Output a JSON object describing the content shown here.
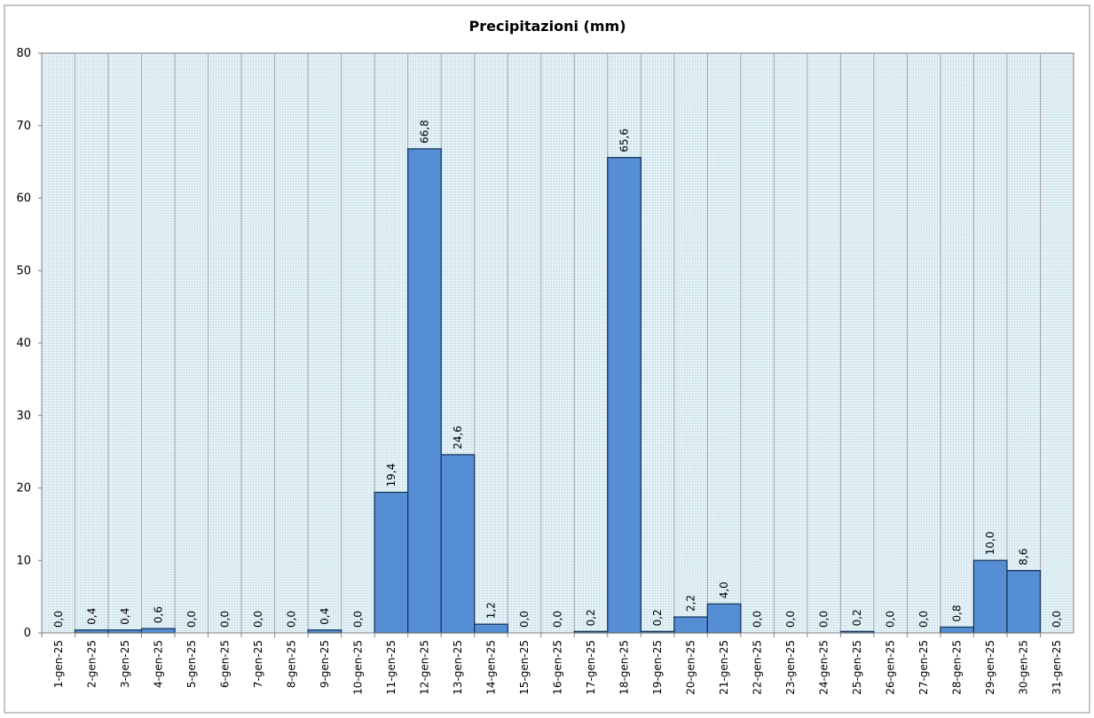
{
  "chart_data": {
    "type": "bar",
    "title": "Precipitazioni  (mm)",
    "xlabel": "",
    "ylabel": "",
    "ylim": [
      0,
      80
    ],
    "yticks": [
      "0",
      "10",
      "20",
      "30",
      "40",
      "50",
      "60",
      "70",
      "80"
    ],
    "grid": "vertical",
    "categories": [
      "1-gen-25",
      "2-gen-25",
      "3-gen-25",
      "4-gen-25",
      "5-gen-25",
      "6-gen-25",
      "7-gen-25",
      "8-gen-25",
      "9-gen-25",
      "10-gen-25",
      "11-gen-25",
      "12-gen-25",
      "13-gen-25",
      "14-gen-25",
      "15-gen-25",
      "16-gen-25",
      "17-gen-25",
      "18-gen-25",
      "19-gen-25",
      "20-gen-25",
      "21-gen-25",
      "22-gen-25",
      "23-gen-25",
      "24-gen-25",
      "25-gen-25",
      "26-gen-25",
      "27-gen-25",
      "28-gen-25",
      "29-gen-25",
      "30-gen-25",
      "31-gen-25"
    ],
    "values": [
      0.0,
      0.4,
      0.4,
      0.6,
      0.0,
      0.0,
      0.0,
      0.0,
      0.4,
      0.0,
      19.4,
      66.8,
      24.6,
      1.2,
      0.0,
      0.0,
      0.2,
      65.6,
      0.2,
      2.2,
      4.0,
      0.0,
      0.0,
      0.0,
      0.2,
      0.0,
      0.0,
      0.8,
      10.0,
      8.6,
      0.0
    ],
    "labels": [
      "0,0",
      "0,4",
      "0,4",
      "0,6",
      "0,0",
      "0,0",
      "0,0",
      "0,0",
      "0,4",
      "0,0",
      "19,4",
      "66,8",
      "24,6",
      "1,2",
      "0,0",
      "0,0",
      "0,2",
      "65,6",
      "0,2",
      "2,2",
      "4,0",
      "0,0",
      "0,0",
      "0,0",
      "0,2",
      "0,0",
      "0,0",
      "0,8",
      "10,0",
      "8,6",
      "0,0"
    ],
    "colors": {
      "bar": "#558ed5",
      "bar_border": "#17375e",
      "plot_bg": "#dbeef4",
      "gridline": "#a6a6a6"
    }
  }
}
